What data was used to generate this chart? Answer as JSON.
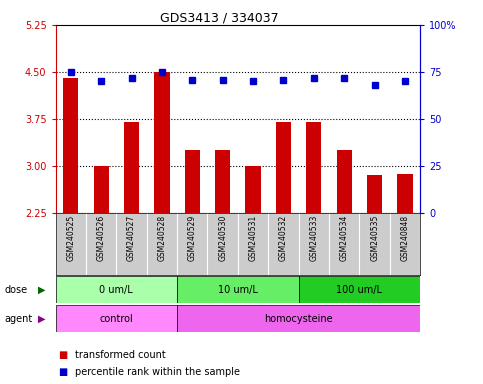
{
  "title": "GDS3413 / 334037",
  "samples": [
    "GSM240525",
    "GSM240526",
    "GSM240527",
    "GSM240528",
    "GSM240529",
    "GSM240530",
    "GSM240531",
    "GSM240532",
    "GSM240533",
    "GSM240534",
    "GSM240535",
    "GSM240848"
  ],
  "transformed_count": [
    4.4,
    3.0,
    3.7,
    4.5,
    3.25,
    3.25,
    3.0,
    3.7,
    3.7,
    3.25,
    2.85,
    2.87
  ],
  "percentile_rank": [
    75,
    70,
    72,
    75,
    71,
    71,
    70,
    71,
    72,
    72,
    68,
    70
  ],
  "ylim_left": [
    2.25,
    5.25
  ],
  "ylim_right": [
    0,
    100
  ],
  "yticks_left": [
    2.25,
    3.0,
    3.75,
    4.5,
    5.25
  ],
  "yticks_right": [
    0,
    25,
    50,
    75,
    100
  ],
  "hlines": [
    3.0,
    3.75,
    4.5
  ],
  "bar_color": "#cc0000",
  "dot_color": "#0000cc",
  "bar_width": 0.5,
  "dose_groups": [
    {
      "label": "0 um/L",
      "start": 0,
      "end": 4,
      "color": "#aaffaa"
    },
    {
      "label": "10 um/L",
      "start": 4,
      "end": 8,
      "color": "#66ee66"
    },
    {
      "label": "100 um/L",
      "start": 8,
      "end": 12,
      "color": "#22cc22"
    }
  ],
  "agent_groups": [
    {
      "label": "control",
      "start": 0,
      "end": 4,
      "color": "#ff88ff"
    },
    {
      "label": "homocysteine",
      "start": 4,
      "end": 12,
      "color": "#ee66ee"
    }
  ],
  "legend_bar_label": "transformed count",
  "legend_dot_label": "percentile rank within the sample",
  "dose_label": "dose",
  "agent_label": "agent",
  "plot_bg_color": "#ffffff",
  "sample_bg_color": "#cccccc",
  "left_axis_color": "#cc0000",
  "right_axis_color": "#0000cc",
  "title_color": "#000000",
  "dose_arrow_color": "#006600",
  "agent_arrow_color": "#880088"
}
